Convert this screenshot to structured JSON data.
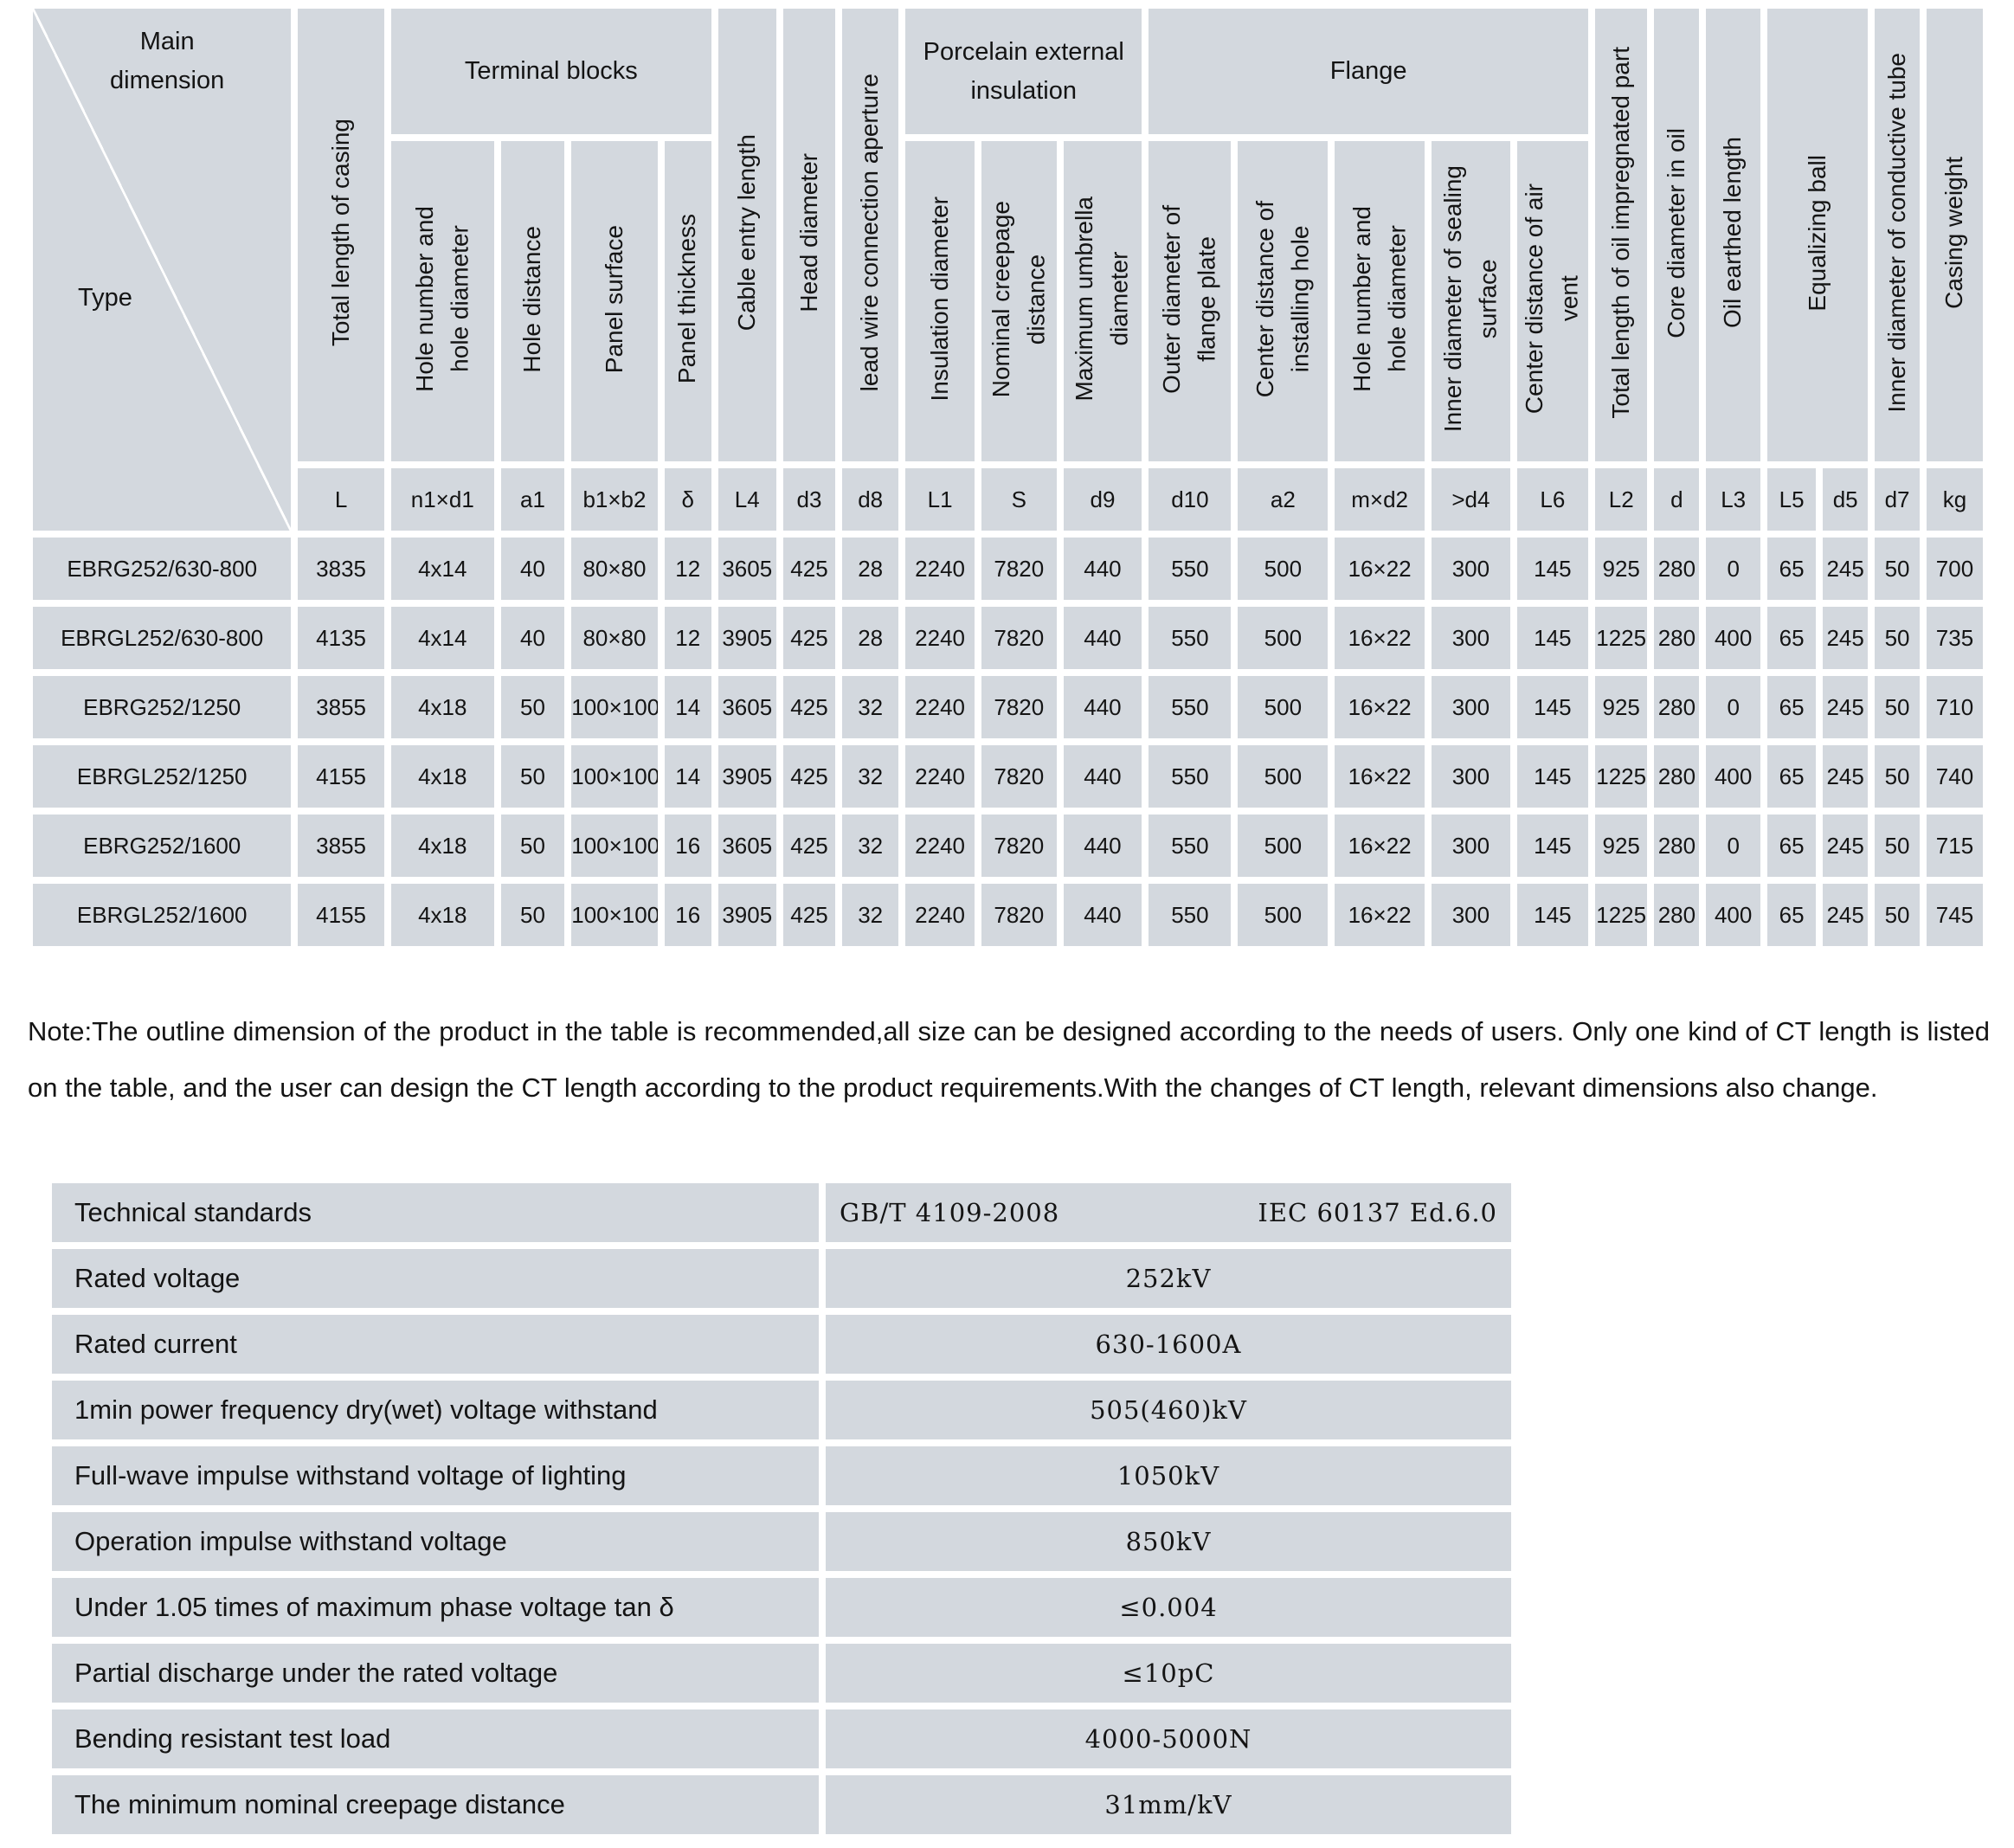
{
  "colors": {
    "cell_bg": "#d3d8de",
    "gap": "#ffffff",
    "text": "#141414"
  },
  "main_table": {
    "corner": {
      "top": "Main\ndimension",
      "bottom": "Type"
    },
    "groups": {
      "terminal_blocks": "Terminal blocks",
      "porcelain": "Porcelain external\ninsulation",
      "flange": "Flange"
    },
    "single_columns": {
      "total_length_casing": "Total length of casing",
      "cable_entry_length": "Cable entry length",
      "head_diameter": "Head diameter",
      "lead_wire_aperture": "lead wire connection aperture",
      "oil_impregnated": "Total length of oil impregnated part",
      "core_diameter_oil": "Core diameter in oil",
      "oil_earthed_length": "Oil earthed length",
      "equalizing_ball": "Equalizing ball",
      "conductive_tube": "Inner diameter of conductive tube",
      "casing_weight": "Casing weight"
    },
    "sub_headers": [
      "Hole number and\nhole diameter",
      "Hole distance",
      "Panel surface",
      "Panel thickness",
      "Insulation diameter",
      "Nominal creepage\ndistance",
      "Maximum umbrella\ndiameter",
      "Outer diameter of\nflange plate",
      "Center distance of\ninstalling hole",
      "Hole number and\nhole diameter",
      "Inner diameter of sealing\nsurface",
      "Center distance of air\nvent"
    ],
    "symbols": [
      "L",
      "n1×d1",
      "a1",
      "b1×b2",
      "δ",
      "L4",
      "d3",
      "d8",
      "L1",
      "S",
      "d9",
      "d10",
      "a2",
      "m×d2",
      ">d4",
      "L6",
      "L2",
      "d",
      "L3",
      "L5",
      "d5",
      "d7",
      "kg"
    ],
    "rows": [
      {
        "type": "EBRG252/630-800",
        "values": [
          "3835",
          "4x14",
          "40",
          "80×80",
          "12",
          "3605",
          "425",
          "28",
          "2240",
          "7820",
          "440",
          "550",
          "500",
          "16×22",
          "300",
          "145",
          "925",
          "280",
          "0",
          "65",
          "245",
          "50",
          "700"
        ]
      },
      {
        "type": "EBRGL252/630-800",
        "values": [
          "4135",
          "4x14",
          "40",
          "80×80",
          "12",
          "3905",
          "425",
          "28",
          "2240",
          "7820",
          "440",
          "550",
          "500",
          "16×22",
          "300",
          "145",
          "1225",
          "280",
          "400",
          "65",
          "245",
          "50",
          "735"
        ]
      },
      {
        "type": "EBRG252/1250",
        "values": [
          "3855",
          "4x18",
          "50",
          "100×100",
          "14",
          "3605",
          "425",
          "32",
          "2240",
          "7820",
          "440",
          "550",
          "500",
          "16×22",
          "300",
          "145",
          "925",
          "280",
          "0",
          "65",
          "245",
          "50",
          "710"
        ]
      },
      {
        "type": "EBRGL252/1250",
        "values": [
          "4155",
          "4x18",
          "50",
          "100×100",
          "14",
          "3905",
          "425",
          "32",
          "2240",
          "7820",
          "440",
          "550",
          "500",
          "16×22",
          "300",
          "145",
          "1225",
          "280",
          "400",
          "65",
          "245",
          "50",
          "740"
        ]
      },
      {
        "type": "EBRG252/1600",
        "values": [
          "3855",
          "4x18",
          "50",
          "100×100",
          "16",
          "3605",
          "425",
          "32",
          "2240",
          "7820",
          "440",
          "550",
          "500",
          "16×22",
          "300",
          "145",
          "925",
          "280",
          "0",
          "65",
          "245",
          "50",
          "715"
        ]
      },
      {
        "type": "EBRGL252/1600",
        "values": [
          "4155",
          "4x18",
          "50",
          "100×100",
          "16",
          "3905",
          "425",
          "32",
          "2240",
          "7820",
          "440",
          "550",
          "500",
          "16×22",
          "300",
          "145",
          "1225",
          "280",
          "400",
          "65",
          "245",
          "50",
          "745"
        ]
      }
    ]
  },
  "note": "Note:The outline dimension of the product in the table is recommended,all size can be designed according to the needs of users. Only one kind of CT length is listed on the table, and the user can design the CT length according to the product requirements.With the changes of CT length, relevant dimensions also change.",
  "spec_table": {
    "rows": [
      {
        "label": "Technical standards",
        "value_left": "GB/T 4109-2008",
        "value_right": "IEC 60137 Ed.6.0"
      },
      {
        "label": "Rated voltage",
        "value": "252kV"
      },
      {
        "label": "Rated current",
        "value": "630-1600A"
      },
      {
        "label": "1min power frequency dry(wet) voltage withstand",
        "value": "505(460)kV"
      },
      {
        "label": "Full-wave impulse withstand voltage of lighting",
        "value": "1050kV"
      },
      {
        "label": "Operation impulse withstand voltage",
        "value": "850kV"
      },
      {
        "label": "Under 1.05 times of maximum phase voltage tan δ",
        "value": "≤0.004"
      },
      {
        "label": "Partial discharge under the rated voltage",
        "value": "≤10pC"
      },
      {
        "label": "Bending resistant test load",
        "value": "4000-5000N"
      },
      {
        "label": "The minimum nominal creepage distance",
        "value": "31mm/kV"
      }
    ]
  }
}
